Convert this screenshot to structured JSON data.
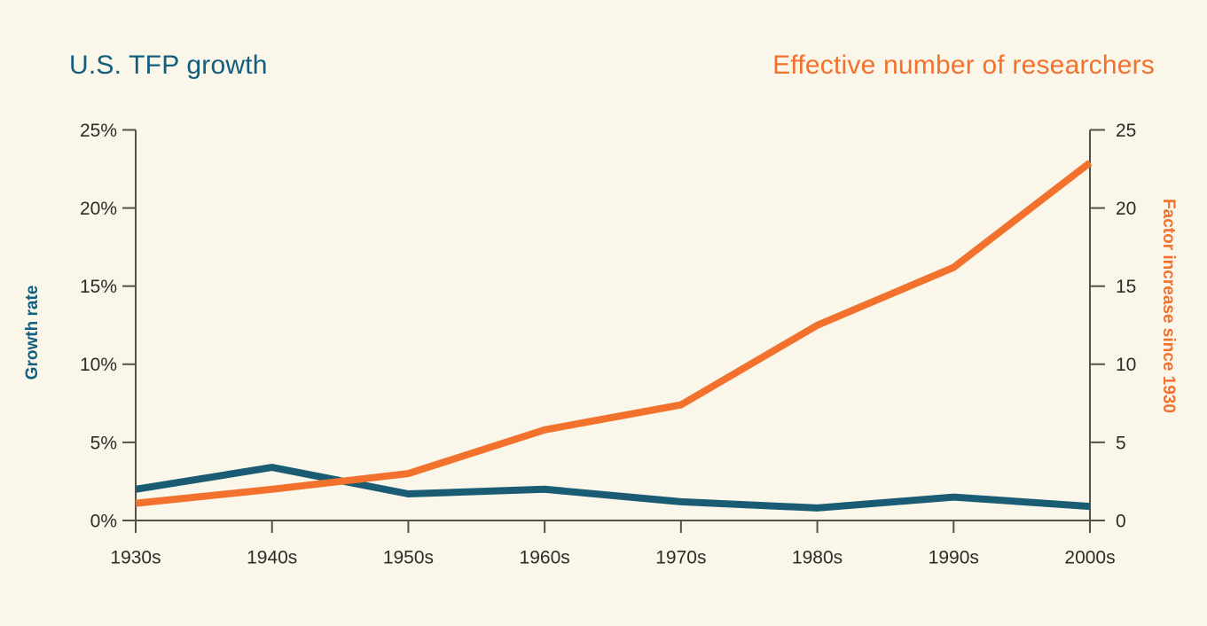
{
  "titles": {
    "left": "U.S. TFP growth",
    "right": "Effective number of researchers"
  },
  "colors": {
    "background": "#faf6ea",
    "teal_title": "#115e7e",
    "teal_line": "#1a5c73",
    "orange": "#f2712d",
    "axis_line": "#55514a",
    "tick_text": "#2f2c27"
  },
  "chart_data": {
    "type": "line",
    "categories": [
      "1930s",
      "1940s",
      "1950s",
      "1960s",
      "1970s",
      "1980s",
      "1990s",
      "2000s"
    ],
    "series": [
      {
        "name": "U.S. TFP growth",
        "axis": "left",
        "color_key": "teal_line",
        "values": [
          2.0,
          3.4,
          1.7,
          2.0,
          1.2,
          0.8,
          1.5,
          0.9
        ]
      },
      {
        "name": "Effective number of researchers",
        "axis": "right",
        "color_key": "orange",
        "values": [
          1.1,
          2.0,
          3.0,
          5.8,
          7.4,
          12.5,
          16.2,
          22.9
        ]
      }
    ],
    "left_axis": {
      "label": "Growth rate",
      "tick_values": [
        0,
        5,
        10,
        15,
        20,
        25
      ],
      "tick_labels": [
        "0%",
        "5%",
        "10%",
        "15%",
        "20%",
        "25%"
      ],
      "range": [
        0,
        25
      ]
    },
    "right_axis": {
      "label": "Factor increase since 1930",
      "tick_values": [
        0,
        5,
        10,
        15,
        20,
        25
      ],
      "tick_labels": [
        "0",
        "5",
        "10",
        "15",
        "20",
        "25"
      ],
      "range": [
        0,
        25
      ]
    },
    "grid": false,
    "legend_position": "titles-above-as-legend"
  }
}
